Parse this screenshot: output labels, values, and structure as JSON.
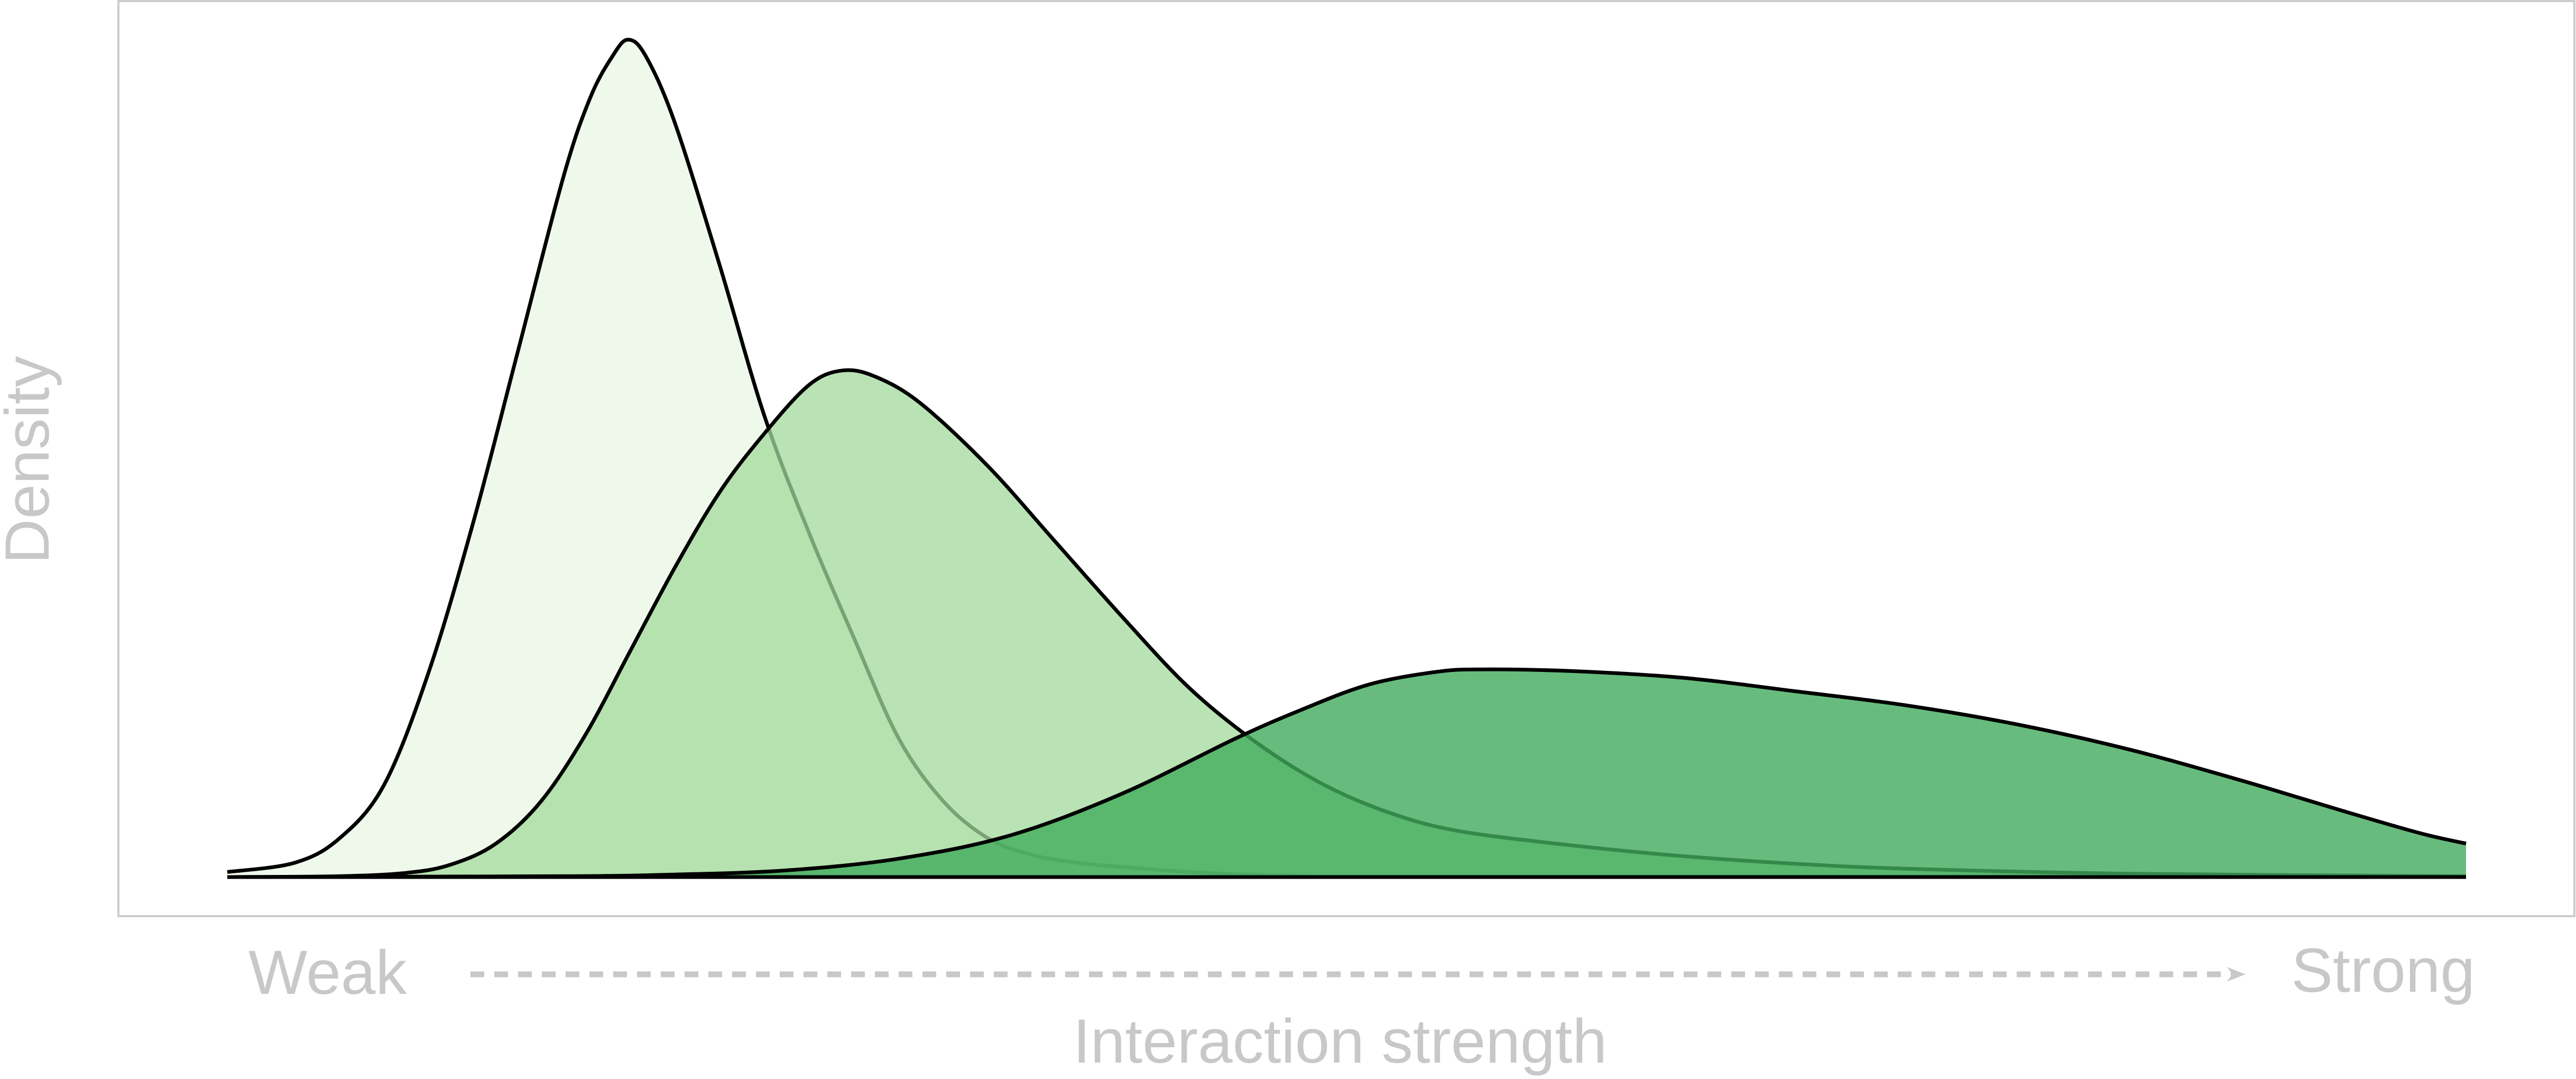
{
  "chart_data": {
    "type": "area",
    "title": "",
    "xlabel": "Interaction strength",
    "ylabel": "Density",
    "x_start_label": "Weak",
    "x_end_label": "Strong",
    "xlim": [
      0,
      1
    ],
    "ylim": [
      0,
      1
    ],
    "grid": false,
    "legend": "none",
    "colors": {
      "axis_text": "#c8c8c8",
      "frame": "#cccccc",
      "outline": "#000000"
    },
    "series": [
      {
        "fill": "#edf8e9",
        "fill_opacity": 0.9,
        "points": [
          [
            0.0,
            0.006
          ],
          [
            0.03,
            0.017
          ],
          [
            0.05,
            0.046
          ],
          [
            0.07,
            0.11
          ],
          [
            0.09,
            0.245
          ],
          [
            0.11,
            0.425
          ],
          [
            0.13,
            0.63
          ],
          [
            0.15,
            0.835
          ],
          [
            0.162,
            0.93
          ],
          [
            0.172,
            0.98
          ],
          [
            0.179,
            1.0
          ],
          [
            0.187,
            0.98
          ],
          [
            0.2,
            0.9
          ],
          [
            0.22,
            0.73
          ],
          [
            0.24,
            0.55
          ],
          [
            0.26,
            0.41
          ],
          [
            0.28,
            0.285
          ],
          [
            0.3,
            0.165
          ],
          [
            0.32,
            0.09
          ],
          [
            0.34,
            0.046
          ],
          [
            0.36,
            0.026
          ],
          [
            0.38,
            0.017
          ],
          [
            0.4,
            0.012
          ],
          [
            0.43,
            0.006
          ],
          [
            0.47,
            0.002
          ],
          [
            0.55,
            0.001
          ],
          [
            1.0,
            0.001
          ]
        ]
      },
      {
        "fill": "#a1d99b",
        "fill_opacity": 0.75,
        "points": [
          [
            0.0,
            0.0
          ],
          [
            0.05,
            0.001
          ],
          [
            0.08,
            0.005
          ],
          [
            0.1,
            0.015
          ],
          [
            0.12,
            0.04
          ],
          [
            0.14,
            0.09
          ],
          [
            0.16,
            0.17
          ],
          [
            0.18,
            0.27
          ],
          [
            0.2,
            0.37
          ],
          [
            0.22,
            0.46
          ],
          [
            0.24,
            0.53
          ],
          [
            0.26,
            0.588
          ],
          [
            0.275,
            0.605
          ],
          [
            0.29,
            0.597
          ],
          [
            0.31,
            0.565
          ],
          [
            0.34,
            0.49
          ],
          [
            0.37,
            0.4
          ],
          [
            0.4,
            0.31
          ],
          [
            0.43,
            0.225
          ],
          [
            0.46,
            0.16
          ],
          [
            0.49,
            0.11
          ],
          [
            0.52,
            0.076
          ],
          [
            0.55,
            0.055
          ],
          [
            0.6,
            0.038
          ],
          [
            0.65,
            0.025
          ],
          [
            0.7,
            0.016
          ],
          [
            0.75,
            0.01
          ],
          [
            0.85,
            0.004
          ],
          [
            1.0,
            0.001
          ]
        ]
      },
      {
        "fill": "#41ab5d",
        "fill_opacity": 0.8,
        "points": [
          [
            0.0,
            0.0
          ],
          [
            0.15,
            0.001
          ],
          [
            0.2,
            0.003
          ],
          [
            0.25,
            0.008
          ],
          [
            0.3,
            0.022
          ],
          [
            0.35,
            0.05
          ],
          [
            0.4,
            0.1
          ],
          [
            0.45,
            0.165
          ],
          [
            0.48,
            0.2
          ],
          [
            0.51,
            0.23
          ],
          [
            0.54,
            0.245
          ],
          [
            0.56,
            0.248
          ],
          [
            0.6,
            0.246
          ],
          [
            0.65,
            0.238
          ],
          [
            0.7,
            0.222
          ],
          [
            0.75,
            0.205
          ],
          [
            0.8,
            0.182
          ],
          [
            0.85,
            0.152
          ],
          [
            0.9,
            0.115
          ],
          [
            0.95,
            0.075
          ],
          [
            0.98,
            0.052
          ],
          [
            1.0,
            0.04
          ]
        ]
      }
    ]
  }
}
